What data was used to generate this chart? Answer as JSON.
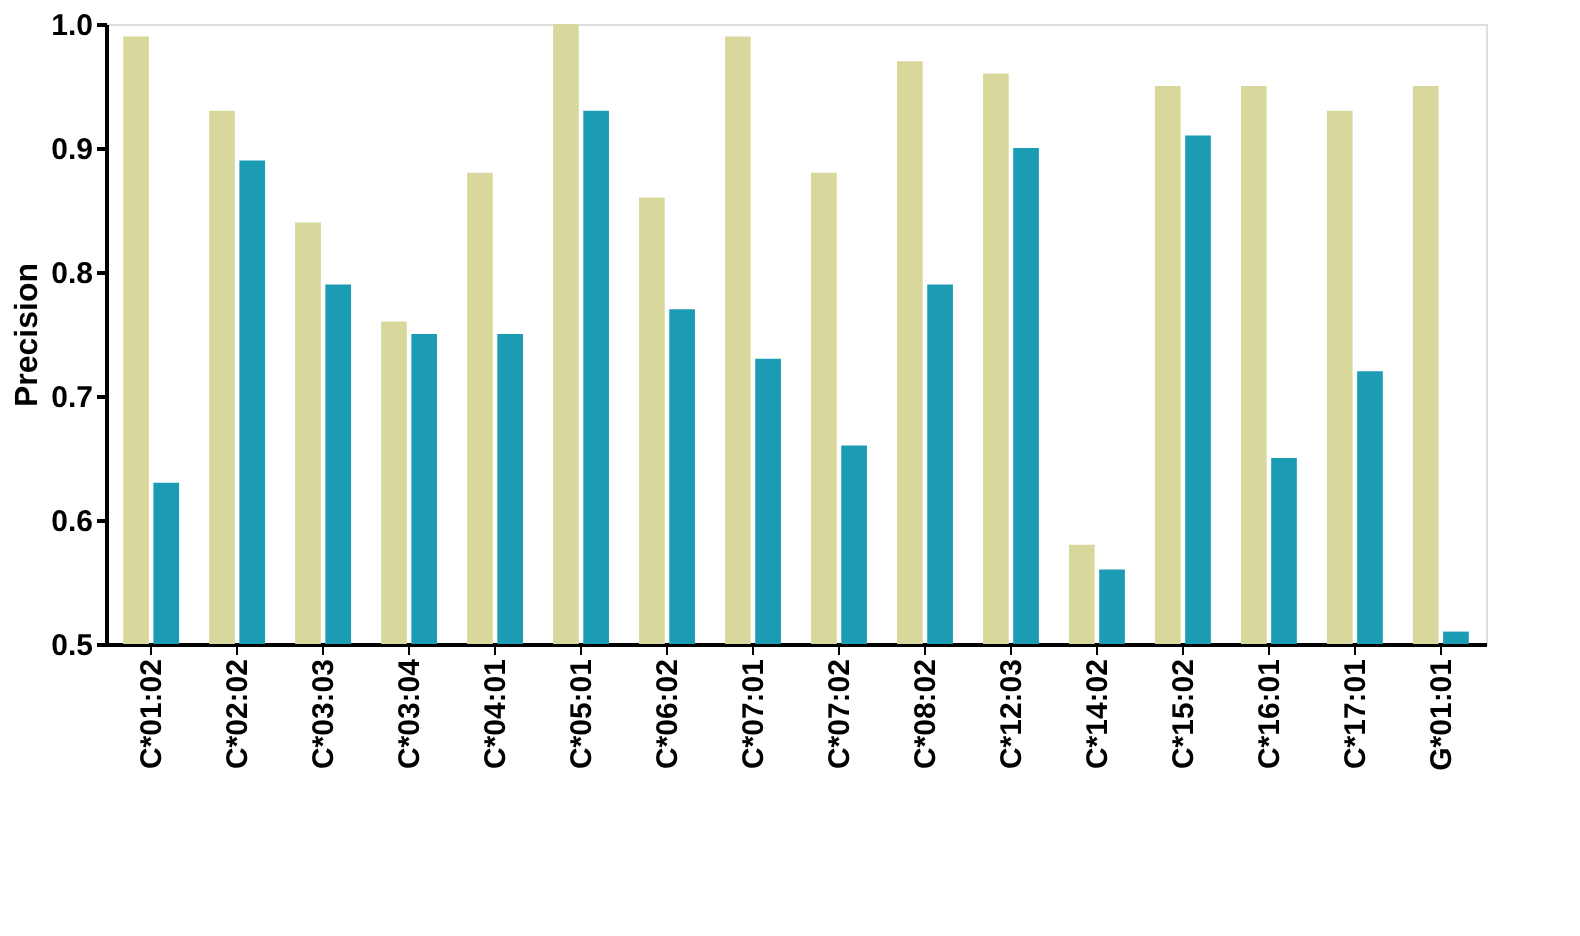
{
  "chart_data": {
    "type": "bar",
    "ylabel": "Precision",
    "categories": [
      "C*01:02",
      "C*02:02",
      "C*03:03",
      "C*03:04",
      "C*04:01",
      "C*05:01",
      "C*06:02",
      "C*07:01",
      "C*07:02",
      "C*08:02",
      "C*12:03",
      "C*14:02",
      "C*15:02",
      "C*16:01",
      "C*17:01",
      "G*01:01"
    ],
    "series": [
      {
        "color": "#d8d89c",
        "values": [
          0.99,
          0.93,
          0.84,
          0.76,
          0.88,
          1.0,
          0.86,
          0.99,
          0.88,
          0.97,
          0.96,
          0.58,
          0.95,
          0.95,
          0.93,
          0.95
        ]
      },
      {
        "color": "#1b9bb4",
        "values": [
          0.63,
          0.89,
          0.79,
          0.75,
          0.75,
          0.93,
          0.77,
          0.73,
          0.66,
          0.79,
          0.9,
          0.56,
          0.91,
          0.65,
          0.72,
          0.51
        ]
      }
    ],
    "ylim": [
      0.5,
      1.0
    ],
    "yticks": [
      {
        "value": 0.5,
        "label": "0.5"
      },
      {
        "value": 0.6,
        "label": "0.6"
      },
      {
        "value": 0.7,
        "label": "0.7"
      },
      {
        "value": 0.8,
        "label": "0.8"
      },
      {
        "value": 0.9,
        "label": "0.9"
      },
      {
        "value": 1,
        "label": "1.0"
      }
    ],
    "grid": false
  }
}
